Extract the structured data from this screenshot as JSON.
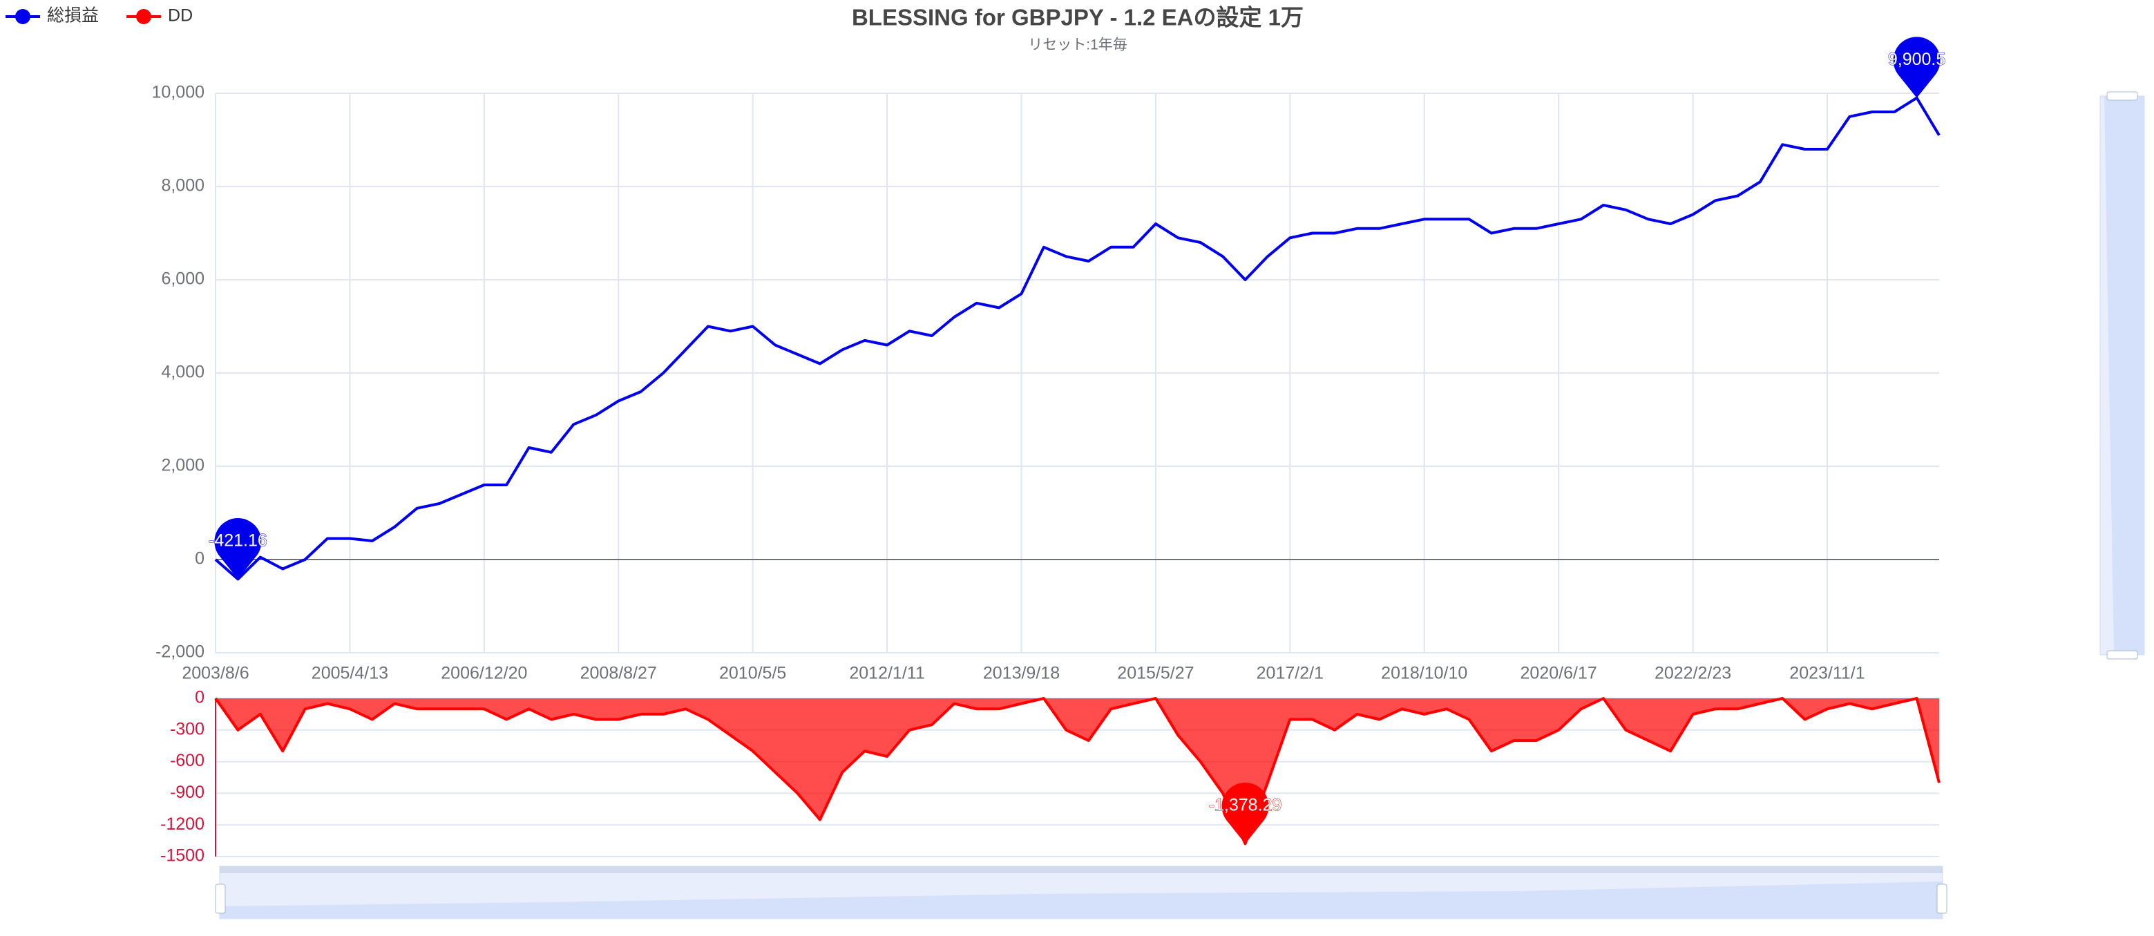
{
  "chart_data": {
    "type": "line",
    "title": "BLESSING for GBPJPY - 1.2 EAの設定 1万",
    "subtitle": "リセット:1年毎",
    "categories": [
      "2003/8/6",
      null,
      null,
      null,
      null,
      null,
      "2005/4/13",
      null,
      null,
      null,
      null,
      null,
      "2006/12/20",
      null,
      null,
      null,
      null,
      null,
      "2008/8/27",
      null,
      null,
      null,
      null,
      null,
      "2010/5/5",
      null,
      null,
      null,
      null,
      null,
      "2012/1/11",
      null,
      null,
      null,
      null,
      null,
      "2013/9/18",
      null,
      null,
      null,
      null,
      null,
      "2015/5/27",
      null,
      null,
      null,
      null,
      null,
      "2017/2/1",
      null,
      null,
      null,
      null,
      null,
      "2018/10/10",
      null,
      null,
      null,
      null,
      null,
      "2020/6/17",
      null,
      null,
      null,
      null,
      null,
      "2022/2/23",
      null,
      null,
      null,
      null,
      null,
      "2023/11/1",
      null,
      null,
      null,
      null,
      null
    ],
    "series": [
      {
        "name": "総損益",
        "color": "#0000ee",
        "values": [
          0,
          -421.16,
          50,
          -200,
          0,
          450,
          450,
          400,
          700,
          1100,
          1200,
          1400,
          1600,
          1600,
          2400,
          2300,
          2900,
          3100,
          3400,
          3600,
          4000,
          4500,
          5000,
          4900,
          5000,
          4600,
          4400,
          4200,
          4500,
          4700,
          4600,
          4900,
          4800,
          5200,
          5500,
          5400,
          5700,
          6700,
          6500,
          6400,
          6700,
          6700,
          7200,
          6900,
          6800,
          6500,
          6000,
          6500,
          6900,
          7000,
          7000,
          7100,
          7100,
          7200,
          7300,
          7300,
          7300,
          7000,
          7100,
          7100,
          7200,
          7300,
          7600,
          7500,
          7300,
          7200,
          7400,
          7700,
          7800,
          8100,
          8900,
          8800,
          8800,
          9500,
          9600,
          9600,
          9900.5,
          9100
        ],
        "value_labels": [
          null,
          "-421.16",
          null,
          null,
          null,
          null,
          null,
          null,
          null,
          null,
          null,
          null,
          null,
          null,
          null,
          null,
          null,
          null,
          null,
          null,
          null,
          null,
          null,
          null,
          null,
          null,
          null,
          null,
          null,
          null,
          null,
          null,
          null,
          null,
          null,
          null,
          null,
          null,
          null,
          null,
          null,
          null,
          null,
          null,
          null,
          null,
          null,
          null,
          null,
          null,
          null,
          null,
          null,
          null,
          null,
          null,
          null,
          null,
          null,
          null,
          null,
          null,
          null,
          null,
          null,
          null,
          null,
          null,
          null,
          null,
          null,
          null,
          null,
          null,
          null,
          null,
          "9,900.5",
          null
        ]
      },
      {
        "name": "DD",
        "color": "#ff0000",
        "axis": "y2",
        "area": true,
        "values": [
          0,
          -300,
          -150,
          -500,
          -100,
          -50,
          -100,
          -200,
          -50,
          -100,
          -100,
          -100,
          -100,
          -200,
          -100,
          -200,
          -150,
          -200,
          -200,
          -150,
          -150,
          -100,
          -200,
          -350,
          -500,
          -700,
          -900,
          -1150,
          -700,
          -500,
          -550,
          -300,
          -250,
          -50,
          -100,
          -100,
          -50,
          0,
          -300,
          -400,
          -100,
          -50,
          0,
          -350,
          -600,
          -900,
          -1378.29,
          -800,
          -200,
          -200,
          -300,
          -150,
          -200,
          -100,
          -150,
          -100,
          -200,
          -500,
          -400,
          -400,
          -300,
          -100,
          0,
          -300,
          -400,
          -500,
          -150,
          -100,
          -100,
          -50,
          0,
          -200,
          -100,
          -50,
          -100,
          -50,
          0,
          -800
        ],
        "value_labels": [
          null,
          null,
          null,
          null,
          null,
          null,
          null,
          null,
          null,
          null,
          null,
          null,
          null,
          null,
          null,
          null,
          null,
          null,
          null,
          null,
          null,
          null,
          null,
          null,
          null,
          null,
          null,
          null,
          null,
          null,
          null,
          null,
          null,
          null,
          null,
          null,
          null,
          null,
          null,
          null,
          null,
          null,
          null,
          null,
          null,
          null,
          "-1,378.29",
          null,
          null,
          null,
          null,
          null,
          null,
          null,
          null,
          null,
          null,
          null,
          null,
          null,
          null,
          null,
          null,
          null,
          null,
          null,
          null,
          null,
          null,
          null,
          null,
          null,
          null,
          null,
          null,
          null,
          null,
          null
        ]
      }
    ],
    "ylim": [
      -2000,
      10000
    ],
    "yticks": [
      {
        "value": -2000,
        "label": "-2,000"
      },
      0,
      {
        "value": 2000,
        "label": "2,000"
      },
      {
        "value": 4000,
        "label": "4,000"
      },
      {
        "value": 6000,
        "label": "6,000"
      },
      {
        "value": 8000,
        "label": "8,000"
      },
      {
        "value": 10000,
        "label": "10,000"
      }
    ],
    "y2lim": [
      -1500,
      0
    ],
    "y2ticks": [
      0,
      -300,
      -600,
      -900,
      -1200,
      -1500
    ],
    "grid": true
  }
}
